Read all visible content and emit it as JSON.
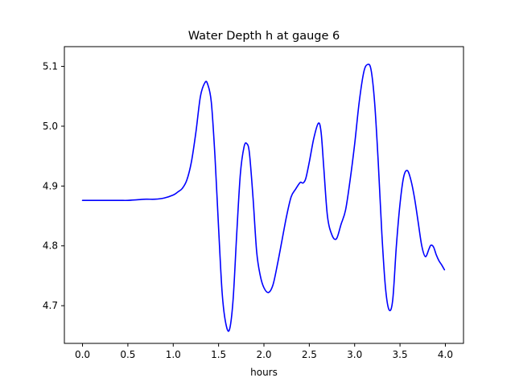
{
  "chart_data": {
    "type": "line",
    "title": "Water Depth h at gauge 6",
    "xlabel": "hours",
    "ylabel": "",
    "xlim": [
      -0.2,
      4.2
    ],
    "ylim": [
      4.637,
      5.133
    ],
    "xticks": [
      {
        "value": 0.0,
        "label": "0.0"
      },
      {
        "value": 0.5,
        "label": "0.5"
      },
      {
        "value": 1.0,
        "label": "1.0"
      },
      {
        "value": 1.5,
        "label": "1.5"
      },
      {
        "value": 2.0,
        "label": "2.0"
      },
      {
        "value": 2.5,
        "label": "2.5"
      },
      {
        "value": 3.0,
        "label": "3.0"
      },
      {
        "value": 3.5,
        "label": "3.5"
      },
      {
        "value": 4.0,
        "label": "4.0"
      }
    ],
    "yticks": [
      {
        "value": 4.7,
        "label": "4.7"
      },
      {
        "value": 4.8,
        "label": "4.8"
      },
      {
        "value": 4.9,
        "label": "4.9"
      },
      {
        "value": 5.0,
        "label": "5.0"
      },
      {
        "value": 5.1,
        "label": "5.1"
      }
    ],
    "grid": false,
    "series": [
      {
        "color": "#0000ff",
        "x": [
          0.0,
          0.2,
          0.4,
          0.5,
          0.6,
          0.7,
          0.8,
          0.9,
          1.0,
          1.05,
          1.1,
          1.15,
          1.2,
          1.25,
          1.3,
          1.35,
          1.38,
          1.42,
          1.46,
          1.5,
          1.54,
          1.58,
          1.62,
          1.66,
          1.7,
          1.74,
          1.78,
          1.81,
          1.84,
          1.88,
          1.92,
          1.96,
          2.0,
          2.05,
          2.1,
          2.15,
          2.2,
          2.25,
          2.3,
          2.35,
          2.4,
          2.43,
          2.46,
          2.5,
          2.55,
          2.6,
          2.63,
          2.66,
          2.7,
          2.75,
          2.8,
          2.85,
          2.9,
          2.95,
          3.0,
          3.05,
          3.1,
          3.14,
          3.18,
          3.22,
          3.26,
          3.3,
          3.34,
          3.38,
          3.42,
          3.46,
          3.5,
          3.54,
          3.58,
          3.62,
          3.66,
          3.7,
          3.74,
          3.78,
          3.82,
          3.84,
          3.87,
          3.9,
          3.93,
          3.96,
          3.99
        ],
        "y": [
          4.876,
          4.876,
          4.876,
          4.876,
          4.877,
          4.878,
          4.878,
          4.88,
          4.885,
          4.89,
          4.896,
          4.91,
          4.94,
          4.99,
          5.05,
          5.073,
          5.07,
          5.04,
          4.95,
          4.83,
          4.72,
          4.67,
          4.66,
          4.71,
          4.82,
          4.92,
          4.965,
          4.971,
          4.955,
          4.88,
          4.79,
          4.75,
          4.73,
          4.722,
          4.735,
          4.77,
          4.81,
          4.85,
          4.882,
          4.895,
          4.906,
          4.905,
          4.912,
          4.94,
          4.98,
          5.005,
          4.99,
          4.93,
          4.85,
          4.818,
          4.812,
          4.836,
          4.86,
          4.91,
          4.97,
          5.04,
          5.09,
          5.103,
          5.095,
          5.04,
          4.94,
          4.82,
          4.73,
          4.693,
          4.71,
          4.8,
          4.87,
          4.915,
          4.926,
          4.91,
          4.88,
          4.84,
          4.8,
          4.782,
          4.795,
          4.801,
          4.798,
          4.785,
          4.775,
          4.768,
          4.76
        ]
      }
    ]
  }
}
